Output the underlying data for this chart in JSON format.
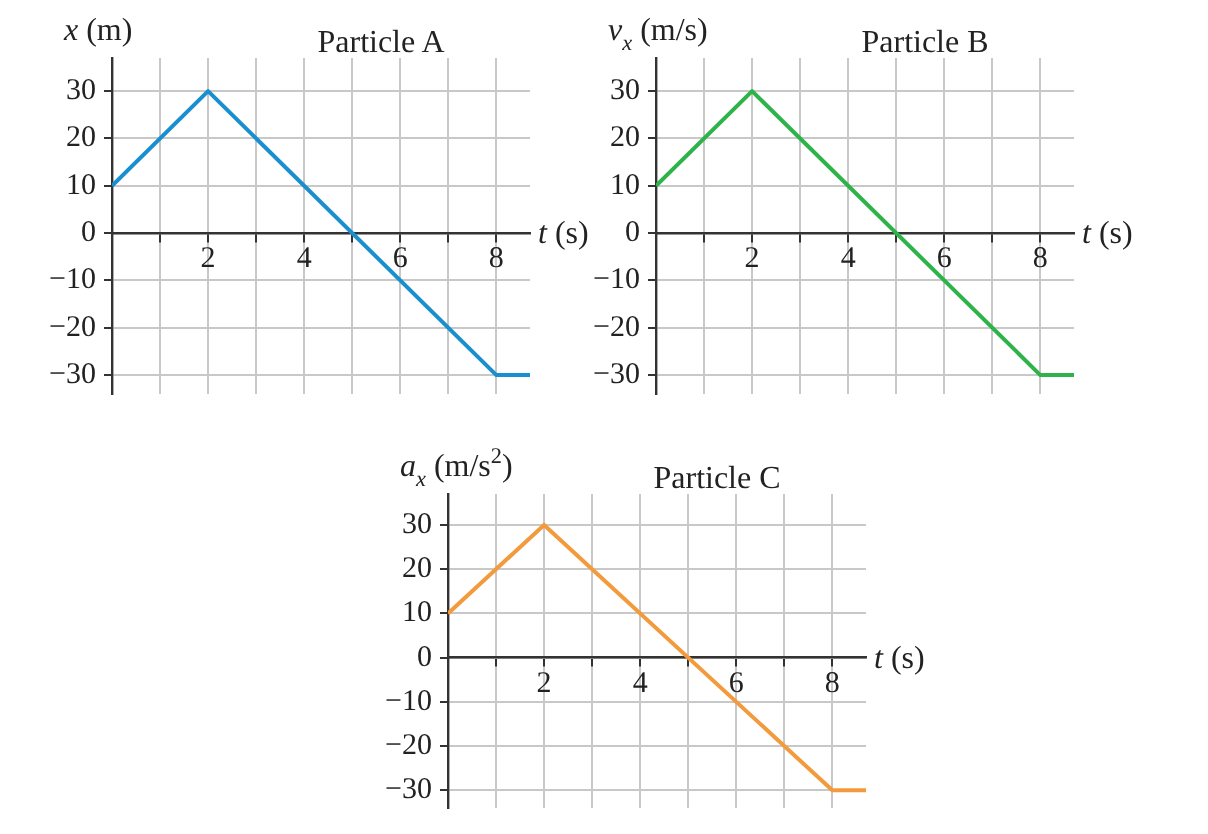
{
  "chart_data": [
    {
      "type": "line",
      "title": "Particle A",
      "ylabel": "x (m)",
      "xlabel": "t (s)",
      "x": [
        0,
        2,
        8,
        8.7
      ],
      "values": [
        10,
        30,
        -30,
        -30
      ],
      "color": "#1a8fd0",
      "xlim": [
        0,
        8.7
      ],
      "ylim": [
        -34,
        37
      ],
      "xticks": [
        {
          "value": 1,
          "label": null
        },
        2,
        {
          "value": 3,
          "label": null
        },
        4,
        {
          "value": 5,
          "label": null
        },
        6,
        {
          "value": 7,
          "label": null
        },
        8
      ],
      "yticks": [
        {
          "value": -30,
          "label": "−30"
        },
        {
          "value": -20,
          "label": "−20"
        },
        {
          "value": -10,
          "label": "−10"
        },
        0,
        10,
        20,
        30
      ],
      "grid": true,
      "marker": "none",
      "legend": false
    },
    {
      "type": "line",
      "title": "Particle B",
      "ylabel": "v$_{x}$ (m/s)",
      "xlabel": "t (s)",
      "x": [
        0,
        2,
        8,
        8.7
      ],
      "values": [
        10,
        30,
        -30,
        -30
      ],
      "color": "#2db34a",
      "xlim": [
        0,
        8.7
      ],
      "ylim": [
        -34,
        37
      ],
      "xticks": [
        {
          "value": 1,
          "label": null
        },
        2,
        {
          "value": 3,
          "label": null
        },
        4,
        {
          "value": 5,
          "label": null
        },
        6,
        {
          "value": 7,
          "label": null
        },
        8
      ],
      "yticks": [
        {
          "value": -30,
          "label": "−30"
        },
        {
          "value": -20,
          "label": "−20"
        },
        {
          "value": -10,
          "label": "−10"
        },
        0,
        10,
        20,
        30
      ],
      "grid": true,
      "marker": "none",
      "legend": false
    },
    {
      "type": "line",
      "title": "Particle C",
      "ylabel": "a$_{x}$ (m/s$^{2}$)",
      "xlabel": "t (s)",
      "x": [
        0,
        2,
        8,
        8.7
      ],
      "values": [
        10,
        30,
        -30,
        -30
      ],
      "color": "#f39a3c",
      "xlim": [
        0,
        8.7
      ],
      "ylim": [
        -34,
        37
      ],
      "xticks": [
        {
          "value": 1,
          "label": null
        },
        2,
        {
          "value": 3,
          "label": null
        },
        4,
        {
          "value": 5,
          "label": null
        },
        6,
        {
          "value": 7,
          "label": null
        },
        8
      ],
      "yticks": [
        {
          "value": -30,
          "label": "−30"
        },
        {
          "value": -20,
          "label": "−20"
        },
        {
          "value": -10,
          "label": "−10"
        },
        0,
        10,
        20,
        30
      ],
      "grid": true,
      "marker": "none",
      "legend": false
    }
  ]
}
